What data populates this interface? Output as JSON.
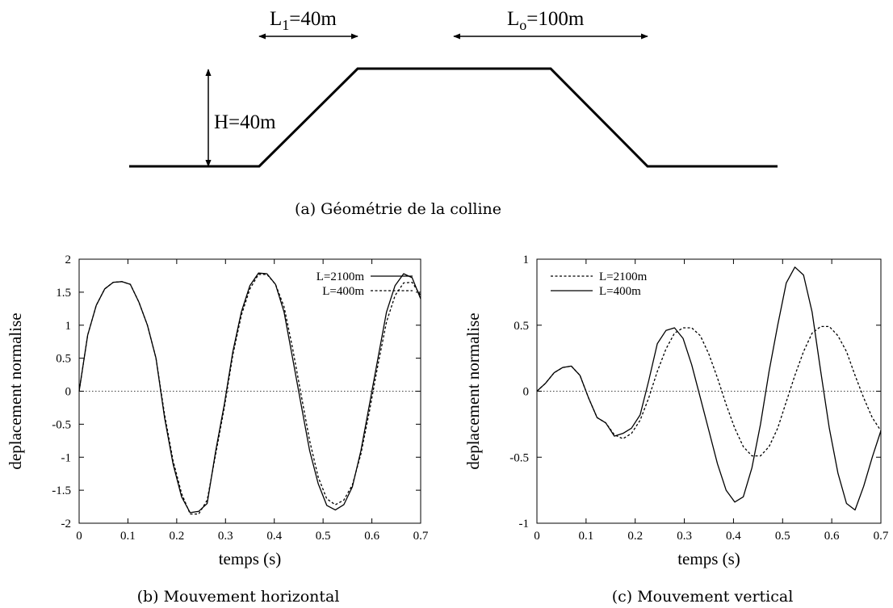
{
  "hill": {
    "l1_base": "L",
    "l1_sub": "1",
    "l1_rest": "=40m",
    "lo_base": "L",
    "lo_sub": "o",
    "lo_rest": "=100m",
    "h_label": "H=40m",
    "caption": "(a)  Géométrie de la colline"
  },
  "chart_data": [
    {
      "type": "line",
      "caption": "(b)  Mouvement horizontal",
      "xlabel": "temps (s)",
      "ylabel": "deplacement normalise",
      "xlim": [
        0,
        0.7
      ],
      "ylim": [
        -2,
        2
      ],
      "xticks": [
        0,
        0.1,
        0.2,
        0.3,
        0.4,
        0.5,
        0.6,
        0.7
      ],
      "xtick_labels": [
        "0",
        "0.1",
        "0.2",
        "0.3",
        "0.4",
        "0.5",
        "0.6",
        "0.7"
      ],
      "yticks": [
        -2,
        -1.5,
        -1,
        -0.5,
        0,
        0.5,
        1,
        1.5,
        2
      ],
      "ytick_labels": [
        "-2",
        "-1.5",
        "-1",
        "-0.5",
        "0",
        "0.5",
        "1",
        "1.5",
        "2"
      ],
      "zero_line": true,
      "legend_position": "top-right",
      "series": [
        {
          "name": "L=2100m",
          "style": "solid",
          "x": [
            0,
            0.0175,
            0.035,
            0.0525,
            0.07,
            0.0875,
            0.105,
            0.1225,
            0.14,
            0.1575,
            0.175,
            0.1925,
            0.21,
            0.2275,
            0.245,
            0.2625,
            0.28,
            0.2975,
            0.315,
            0.3325,
            0.35,
            0.3675,
            0.385,
            0.4025,
            0.42,
            0.4375,
            0.455,
            0.4725,
            0.49,
            0.5075,
            0.525,
            0.5425,
            0.56,
            0.5775,
            0.595,
            0.6125,
            0.63,
            0.6475,
            0.665,
            0.6825,
            0.7
          ],
          "y": [
            0,
            0.85,
            1.3,
            1.55,
            1.65,
            1.66,
            1.62,
            1.35,
            1.0,
            0.5,
            -0.4,
            -1.1,
            -1.6,
            -1.84,
            -1.82,
            -1.7,
            -0.9,
            -0.2,
            0.6,
            1.2,
            1.6,
            1.79,
            1.78,
            1.62,
            1.2,
            0.5,
            -0.2,
            -0.9,
            -1.4,
            -1.73,
            -1.8,
            -1.72,
            -1.45,
            -0.9,
            -0.2,
            0.5,
            1.2,
            1.6,
            1.78,
            1.72,
            1.4
          ]
        },
        {
          "name": "L=400m",
          "style": "dashed",
          "x": [
            0,
            0.0175,
            0.035,
            0.0525,
            0.07,
            0.0875,
            0.105,
            0.1225,
            0.14,
            0.1575,
            0.175,
            0.1925,
            0.21,
            0.2275,
            0.245,
            0.2625,
            0.28,
            0.2975,
            0.315,
            0.3325,
            0.35,
            0.3675,
            0.385,
            0.4025,
            0.42,
            0.4375,
            0.455,
            0.4725,
            0.49,
            0.5075,
            0.525,
            0.5425,
            0.56,
            0.5775,
            0.595,
            0.6125,
            0.63,
            0.6475,
            0.665,
            0.6825,
            0.7
          ],
          "y": [
            0,
            0.85,
            1.3,
            1.55,
            1.65,
            1.66,
            1.62,
            1.35,
            1.0,
            0.5,
            -0.35,
            -1.05,
            -1.55,
            -1.86,
            -1.86,
            -1.65,
            -0.95,
            -0.25,
            0.55,
            1.15,
            1.55,
            1.77,
            1.77,
            1.62,
            1.28,
            0.65,
            -0.05,
            -0.75,
            -1.3,
            -1.63,
            -1.72,
            -1.65,
            -1.42,
            -0.95,
            -0.3,
            0.4,
            1.05,
            1.45,
            1.64,
            1.65,
            1.45
          ]
        }
      ]
    },
    {
      "type": "line",
      "caption": "(c)  Mouvement vertical",
      "xlabel": "temps (s)",
      "ylabel": "deplacement normalise",
      "xlim": [
        0,
        0.7
      ],
      "ylim": [
        -1,
        1
      ],
      "xticks": [
        0,
        0.1,
        0.2,
        0.3,
        0.4,
        0.5,
        0.6,
        0.7
      ],
      "xtick_labels": [
        "0",
        "0.1",
        "0.2",
        "0.3",
        "0.4",
        "0.5",
        "0.6",
        "0.7"
      ],
      "yticks": [
        -1,
        -0.5,
        0,
        0.5,
        1
      ],
      "ytick_labels": [
        "-1",
        "-0.5",
        "0",
        "0.5",
        "1"
      ],
      "zero_line": true,
      "legend_position": "top-left",
      "series": [
        {
          "name": "L=2100m",
          "style": "dashed",
          "x": [
            0,
            0.0175,
            0.035,
            0.0525,
            0.07,
            0.0875,
            0.105,
            0.1225,
            0.14,
            0.1575,
            0.175,
            0.1925,
            0.21,
            0.2275,
            0.245,
            0.2625,
            0.28,
            0.2975,
            0.315,
            0.3325,
            0.35,
            0.3675,
            0.385,
            0.4025,
            0.42,
            0.4375,
            0.455,
            0.4725,
            0.49,
            0.5075,
            0.525,
            0.5425,
            0.56,
            0.5775,
            0.595,
            0.6125,
            0.63,
            0.6475,
            0.665,
            0.6825,
            0.7
          ],
          "y": [
            0,
            0.06,
            0.14,
            0.18,
            0.19,
            0.12,
            -0.05,
            -0.2,
            -0.24,
            -0.33,
            -0.36,
            -0.32,
            -0.22,
            -0.05,
            0.15,
            0.32,
            0.44,
            0.48,
            0.48,
            0.42,
            0.28,
            0.1,
            -0.1,
            -0.28,
            -0.42,
            -0.49,
            -0.49,
            -0.42,
            -0.28,
            -0.08,
            0.12,
            0.3,
            0.44,
            0.49,
            0.49,
            0.42,
            0.3,
            0.12,
            -0.05,
            -0.2,
            -0.3
          ]
        },
        {
          "name": "L=400m",
          "style": "solid",
          "x": [
            0,
            0.0175,
            0.035,
            0.0525,
            0.07,
            0.0875,
            0.105,
            0.1225,
            0.14,
            0.1575,
            0.175,
            0.1925,
            0.21,
            0.2275,
            0.245,
            0.2625,
            0.28,
            0.2975,
            0.315,
            0.3325,
            0.35,
            0.3675,
            0.385,
            0.4025,
            0.42,
            0.4375,
            0.455,
            0.4725,
            0.49,
            0.5075,
            0.525,
            0.5425,
            0.56,
            0.5775,
            0.595,
            0.6125,
            0.63,
            0.6475,
            0.665,
            0.6825,
            0.7
          ],
          "y": [
            0,
            0.06,
            0.14,
            0.18,
            0.19,
            0.12,
            -0.05,
            -0.2,
            -0.24,
            -0.34,
            -0.32,
            -0.28,
            -0.18,
            0.08,
            0.36,
            0.46,
            0.48,
            0.4,
            0.2,
            -0.05,
            -0.3,
            -0.55,
            -0.75,
            -0.84,
            -0.8,
            -0.58,
            -0.25,
            0.15,
            0.5,
            0.82,
            0.94,
            0.88,
            0.6,
            0.15,
            -0.28,
            -0.62,
            -0.85,
            -0.9,
            -0.72,
            -0.5,
            -0.3
          ]
        }
      ]
    }
  ]
}
